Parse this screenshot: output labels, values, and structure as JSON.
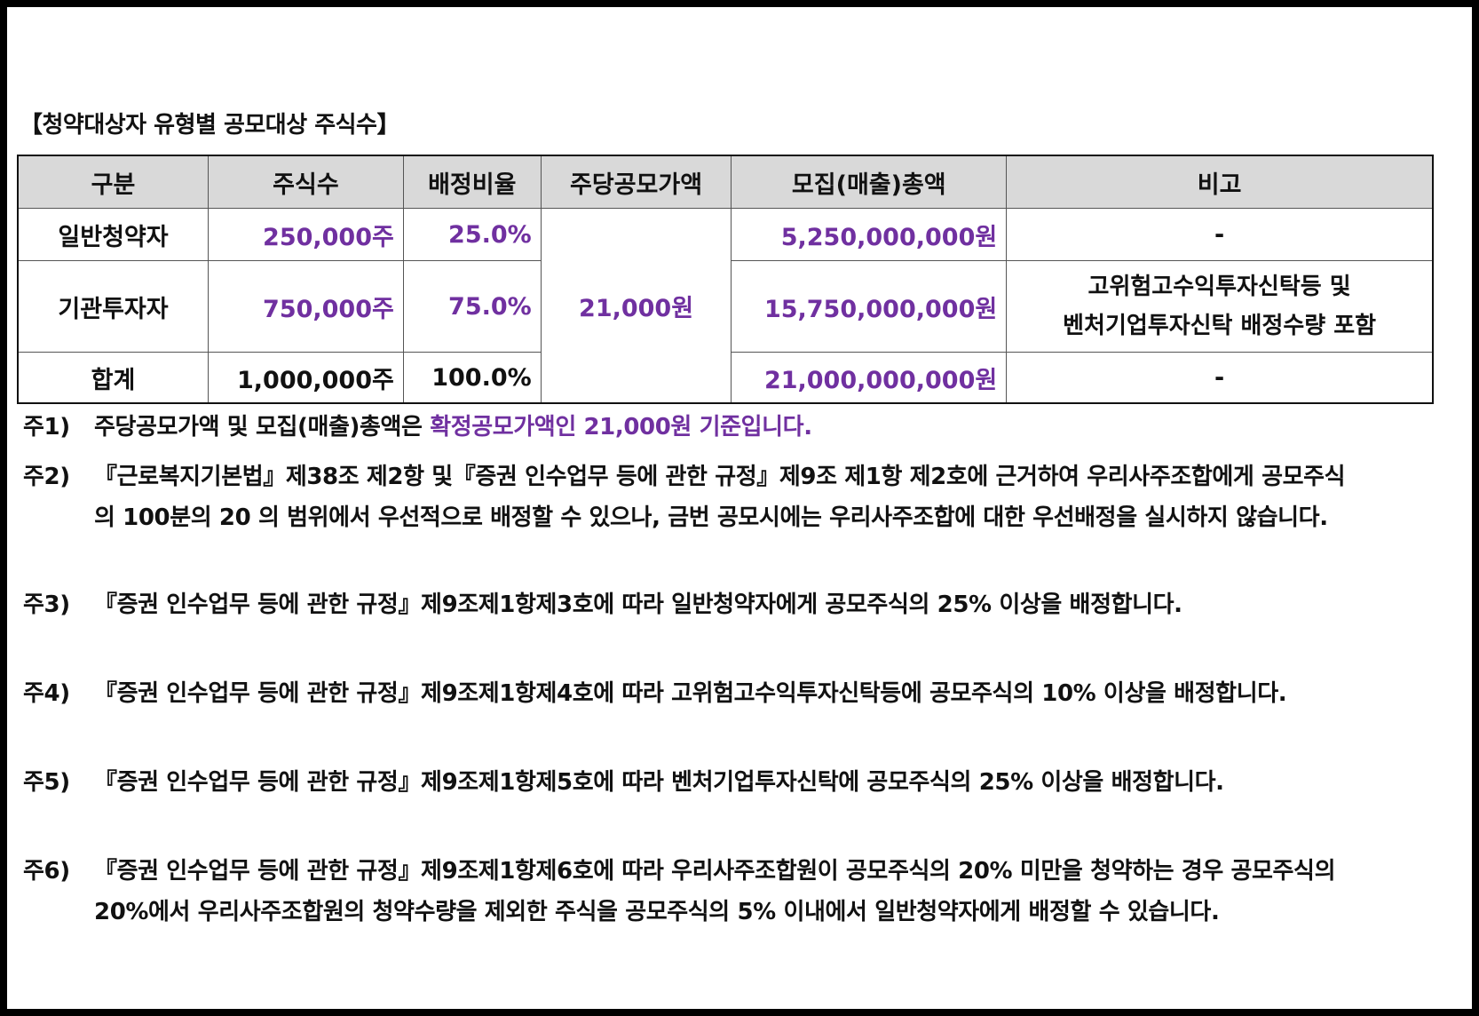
{
  "title": "【청약대상자 유형별 공모대상 주식수】",
  "table": {
    "headers": [
      "구분",
      "주식수",
      "배정비율",
      "주당공모가액",
      "모집(매출)총액",
      "비고"
    ],
    "rows": [
      {
        "type": "일반청약자",
        "shares": "250,000주",
        "ratio": "25.0%",
        "amount": "5,250,000,000원",
        "note": "-"
      },
      {
        "type": "기관투자자",
        "shares": "750,000주",
        "ratio": "75.0%",
        "amount": "15,750,000,000원",
        "note_line1": "고위험고수익투자신탁등 및",
        "note_line2": "벤처기업투자신탁 배정수량 포함"
      },
      {
        "type": "합계",
        "shares": "1,000,000주",
        "ratio": "100.0%",
        "amount": "21,000,000,000원",
        "note": "-"
      }
    ],
    "price": "21,000원"
  },
  "notes": [
    {
      "label": "주1)",
      "text_plain": "주당공모가액 및 모집(매출)총액은 ",
      "text_highlight": "확정공모가액인 21,000원 기준입니다."
    },
    {
      "label": "주2)",
      "line1": "『근로복지기본법』제38조 제2항 및『증권 인수업무 등에 관한 규정』제9조 제1항 제2호에 근거하여 우리사주조합에게 공모주식",
      "line2": "의 100분의 20 의 범위에서 우선적으로 배정할 수 있으나, 금번 공모시에는 우리사주조합에 대한 우선배정을 실시하지 않습니다."
    },
    {
      "label": "주3)",
      "line1": "『증권 인수업무 등에 관한 규정』제9조제1항제3호에 따라 일반청약자에게 공모주식의 25% 이상을 배정합니다."
    },
    {
      "label": "주4)",
      "line1": "『증권 인수업무 등에 관한 규정』제9조제1항제4호에 따라 고위험고수익투자신탁등에 공모주식의 10% 이상을 배정합니다."
    },
    {
      "label": "주5)",
      "line1": "『증권 인수업무 등에 관한 규정』제9조제1항제5호에 따라 벤처기업투자신탁에 공모주식의 25% 이상을 배정합니다."
    },
    {
      "label": "주6)",
      "line1": "『증권 인수업무 등에 관한 규정』제9조제1항제6호에 따라 우리사주조합원이 공모주식의 20% 미만을 청약하는 경우 공모주식의",
      "line2": "20%에서 우리사주조합원의 청약수량을 제외한 주식을 공모주식의 5% 이내에서 일반청약자에게 배정할 수 있습니다."
    }
  ],
  "colors": {
    "highlight": "#7030a0",
    "header_bg": "#d9d9d9"
  }
}
